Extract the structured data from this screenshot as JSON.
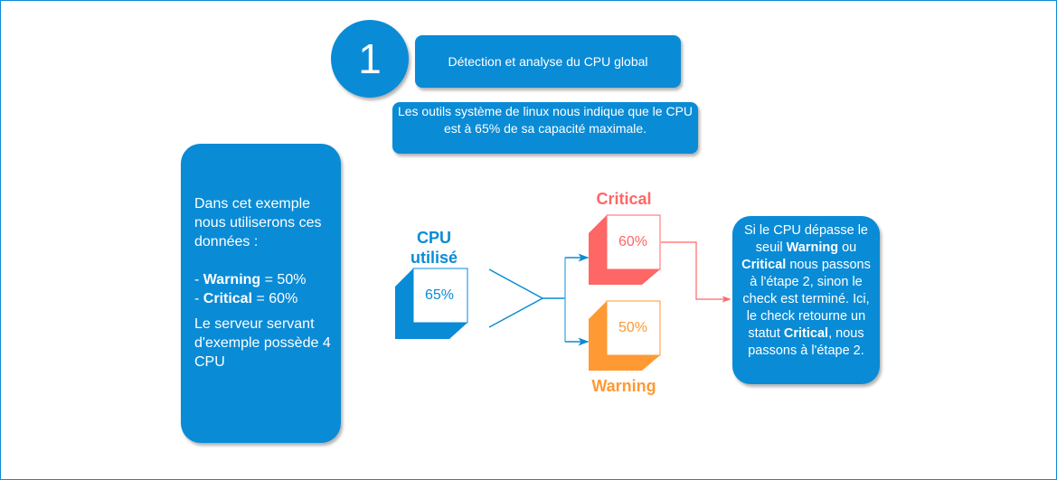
{
  "step": {
    "number": "1",
    "title": "Détection et analyse du CPU global",
    "description": "Les outils système de linux nous indique que le CPU est à 65% de sa capacité maximale."
  },
  "info": {
    "line1": "Dans cet exemple nous utiliserons ces données :",
    "warning_prefix": "- ",
    "warning_label": "Warning",
    "warning_value": " = 50%",
    "critical_prefix": "- ",
    "critical_label": "Critical",
    "critical_value": " = 60%",
    "server": "Le serveur servant d'exemple possède 4 CPU"
  },
  "cpu": {
    "label": "CPU utilisé",
    "value": "65%",
    "color": "#0a8bd6"
  },
  "critical": {
    "label": "Critical",
    "value": "60%",
    "color": "#ff6666"
  },
  "warning": {
    "label": "Warning",
    "value": "50%",
    "color": "#ff9933"
  },
  "result": {
    "t1": "Si le CPU dépasse le seuil ",
    "b1": "Warning",
    "t2": " ou ",
    "b2": "Critical",
    "t3": " nous passons à l'étape 2, sinon le check est terminé. Ici, le check retourne un statut ",
    "b3": "Critical",
    "t4": ", nous passons à l'étape 2."
  }
}
